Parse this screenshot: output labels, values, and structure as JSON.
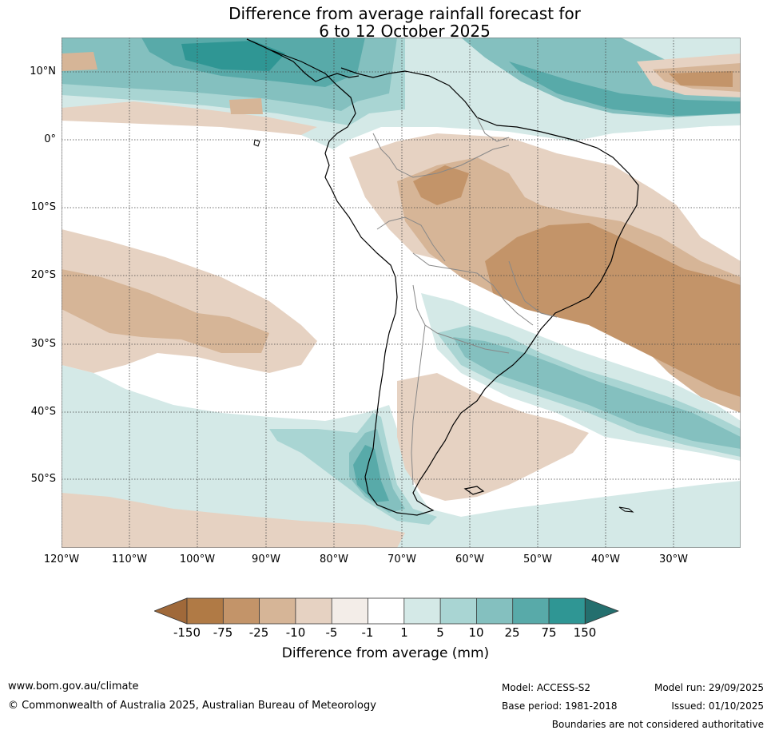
{
  "title": {
    "line1": "Difference from average rainfall forecast for",
    "line2": "6 to 12 October 2025"
  },
  "map": {
    "latitude_labels": [
      "10°N",
      "0°",
      "10°S",
      "20°S",
      "30°S",
      "40°S",
      "50°S"
    ],
    "longitude_labels": [
      "120°W",
      "110°W",
      "100°W",
      "90°W",
      "80°W",
      "70°W",
      "60°W",
      "50°W",
      "40°W",
      "30°W"
    ],
    "colors": {
      "dry_150": "#a0693a",
      "dry_75": "#b07a45",
      "dry_25": "#c39469",
      "dry_10": "#d6b597",
      "dry_5": "#e6d2c2",
      "dry_1": "#f3ede8",
      "neutral": "#ffffff",
      "wet_5": "#d4e9e7",
      "wet_10": "#a9d5d3",
      "wet_25": "#84c0bf",
      "wet_75": "#58aaa9",
      "wet_150": "#2f9694",
      "wet_over": "#246f6e"
    }
  },
  "colorbar": {
    "ticks": [
      "-150",
      "-75",
      "-25",
      "-10",
      "-5",
      "-1",
      "1",
      "5",
      "10",
      "25",
      "75",
      "150"
    ],
    "label": "Difference from average (mm)"
  },
  "footer": {
    "url": "www.bom.gov.au/climate",
    "copyright": "© Commonwealth of Australia 2025, Australian Bureau of Meteorology",
    "model": "Model: ACCESS-S2",
    "base_period": "Base period: 1981-2018",
    "model_run": "Model run: 29/09/2025",
    "issued": "Issued: 01/10/2025",
    "disclaimer": "Boundaries are not considered authoritative"
  }
}
